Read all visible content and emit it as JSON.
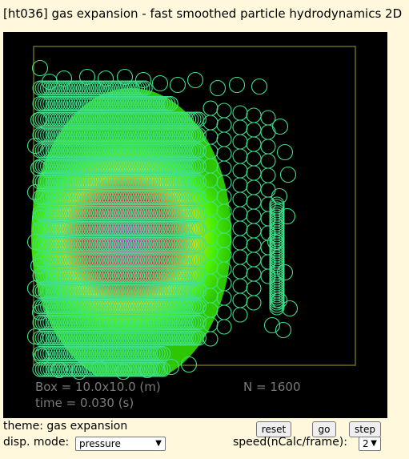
{
  "title": "[ht036] gas expansion - fast smoothed particle hydrodynamics 2D",
  "sim": {
    "box_label": "Box = 10.0x10.0 (m)",
    "time_label": "time = 0.030 (s)",
    "n_label": "N = 1600"
  },
  "controls": {
    "theme_label": "theme: gas expansion",
    "disp_label": "disp. mode:",
    "disp_value": "pressure",
    "speed_label": "speed(nCalc/frame):",
    "speed_value": "2",
    "reset_label": "reset",
    "go_label": "go",
    "step_label": "step"
  },
  "colors": {
    "background": "#fff8dc",
    "canvas": "#000000",
    "box_outline": "#6b6b1a",
    "particle_outline": "#3fe08a",
    "pressure_high": "#ff00ff",
    "pressure_mid": "#ff3030",
    "pressure_low": "#40ff00"
  }
}
